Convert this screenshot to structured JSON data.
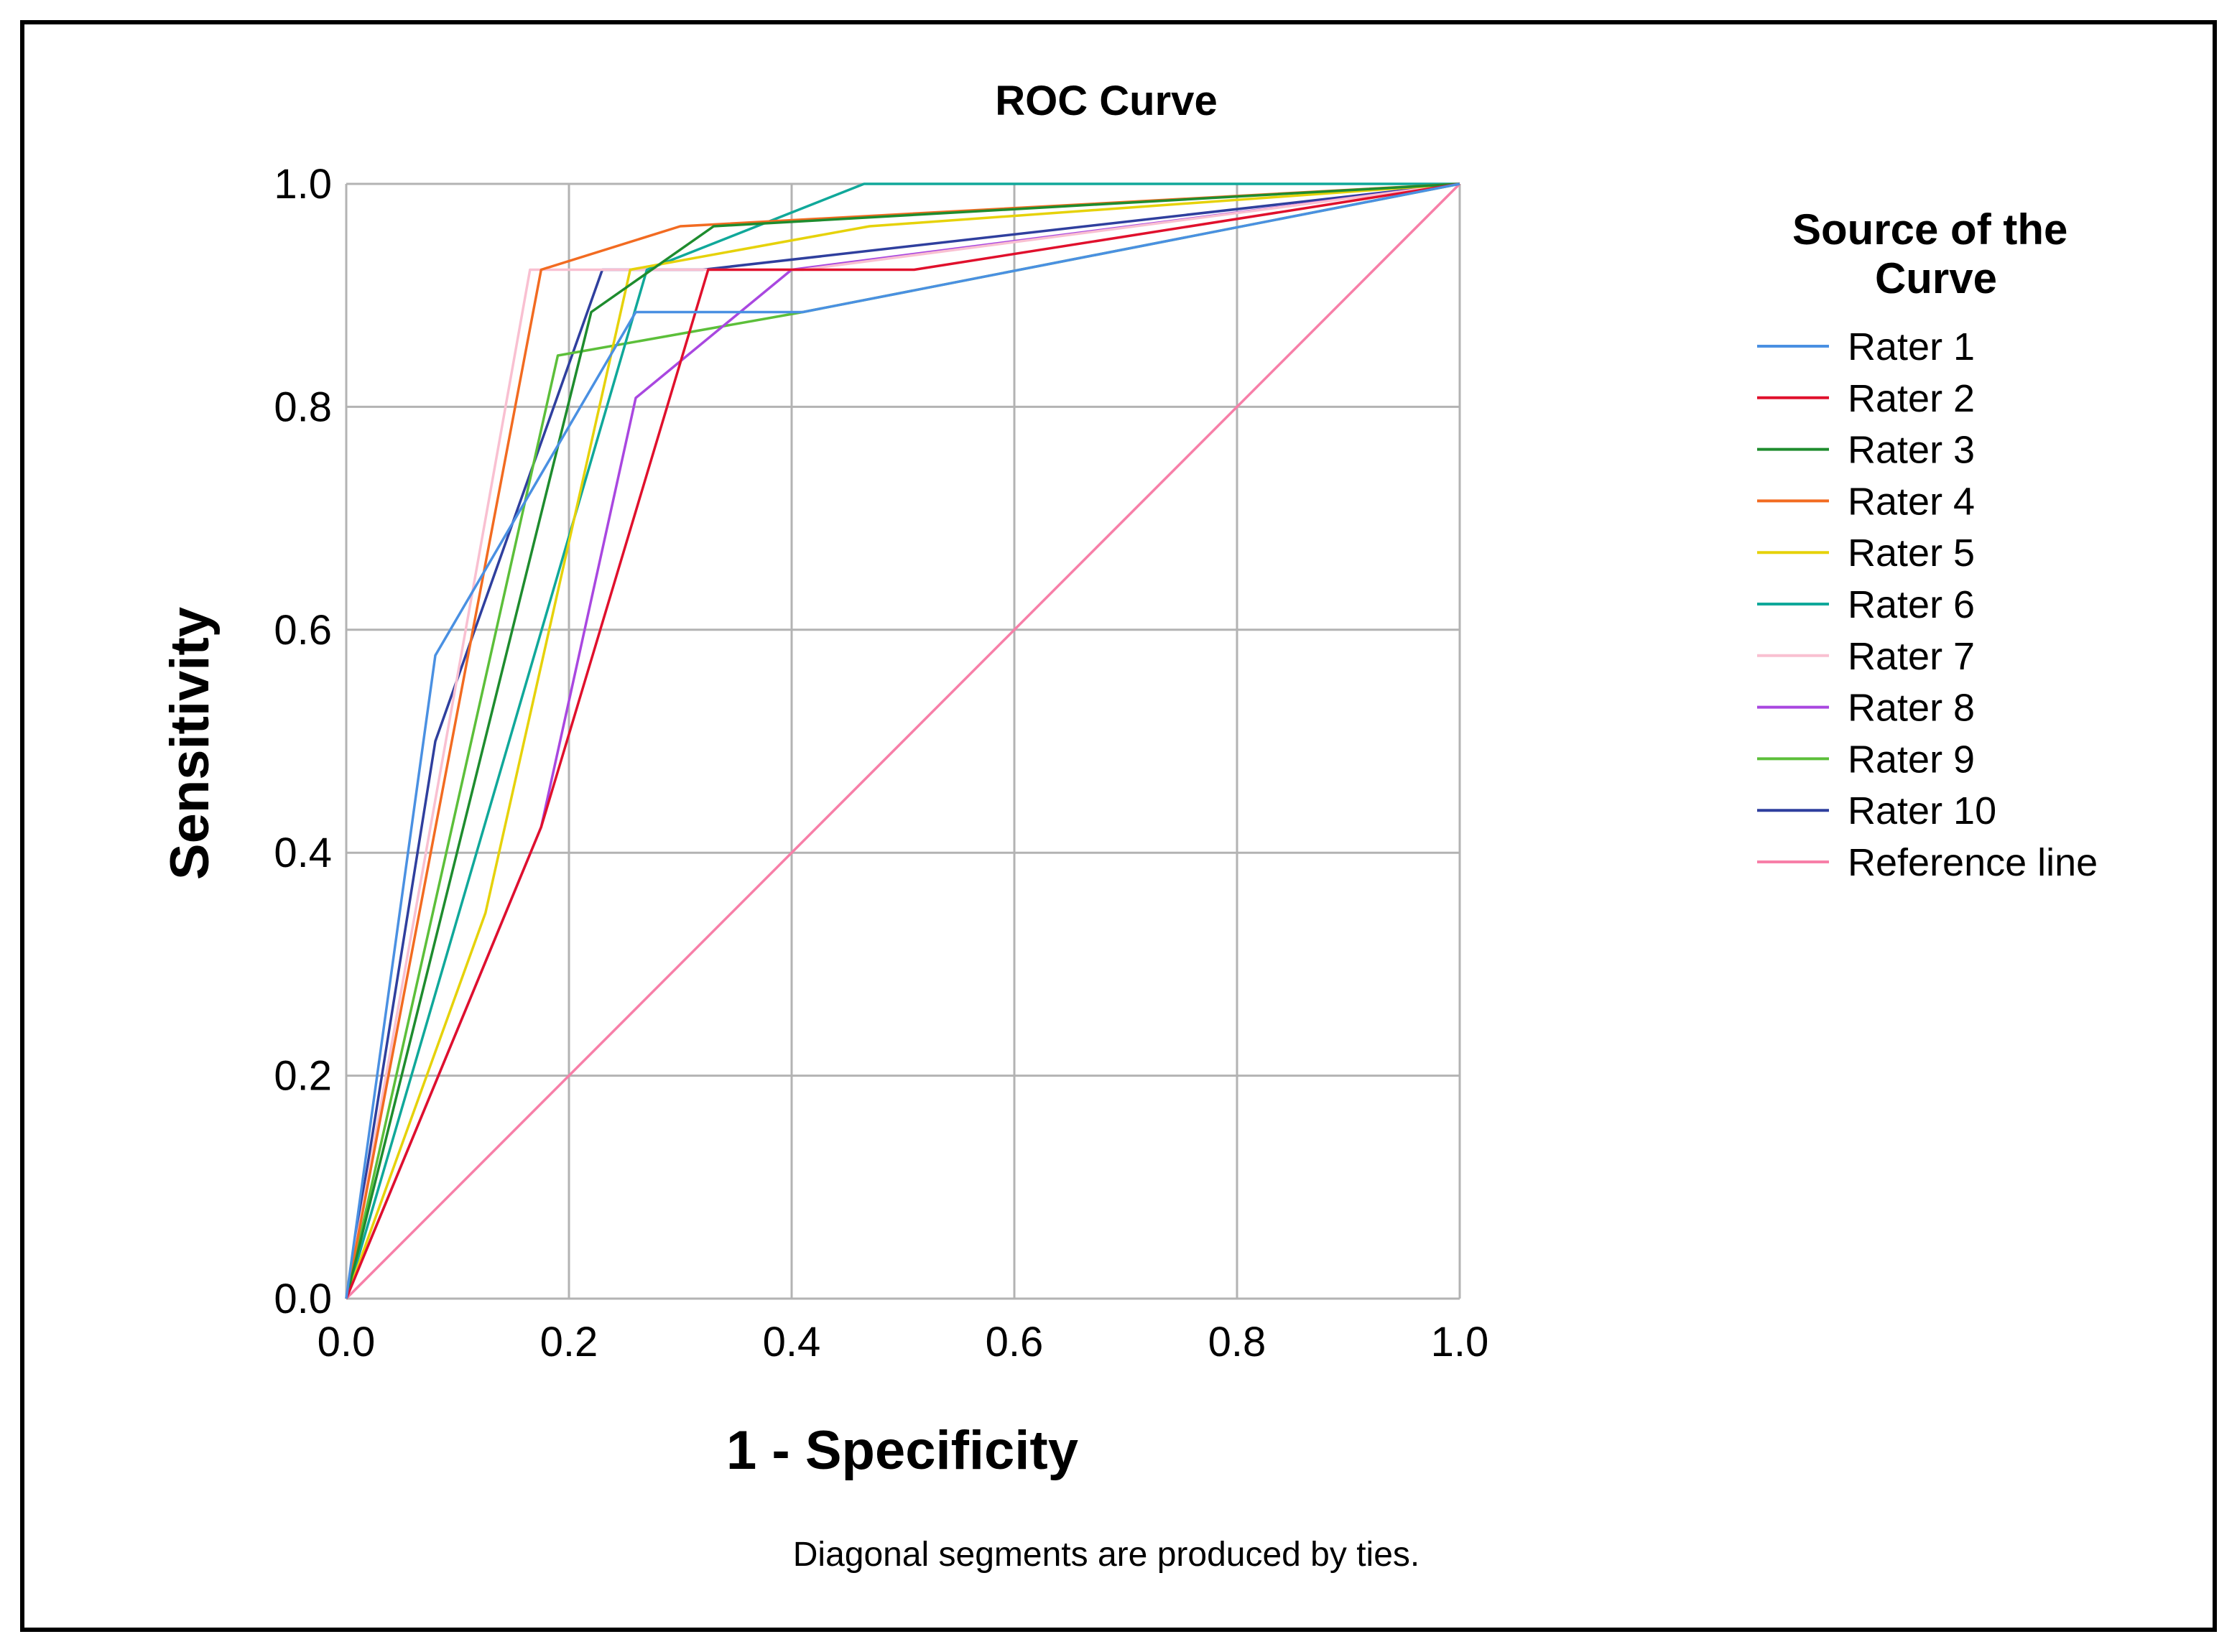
{
  "chart_data": {
    "type": "line",
    "title": "ROC Curve",
    "xlabel": "1 - Specificity",
    "ylabel": "Sensitivity",
    "xlim": [
      0,
      1
    ],
    "ylim": [
      0,
      1
    ],
    "x_ticks": [
      "0.0",
      "0.2",
      "0.4",
      "0.6",
      "0.8",
      "1.0"
    ],
    "y_ticks": [
      "0.0",
      "0.2",
      "0.4",
      "0.6",
      "0.8",
      "1.0"
    ],
    "grid": true,
    "legend_title": "Source of the Curve",
    "legend_title_lines": [
      "Source of the",
      "Curve"
    ],
    "legend_position": "right",
    "footnote": "Diagonal segments are produced by ties.",
    "series": [
      {
        "name": "Rater 1",
        "color": "#4a90e2",
        "points": [
          [
            0,
            0
          ],
          [
            0.08,
            0.577
          ],
          [
            0.26,
            0.885
          ],
          [
            0.41,
            0.885
          ],
          [
            1,
            1
          ]
        ]
      },
      {
        "name": "Rater 2",
        "color": "#e0102c",
        "points": [
          [
            0,
            0
          ],
          [
            0.175,
            0.423
          ],
          [
            0.325,
            0.923
          ],
          [
            0.51,
            0.923
          ],
          [
            1,
            1
          ]
        ]
      },
      {
        "name": "Rater 3",
        "color": "#1e8c2e",
        "points": [
          [
            0,
            0
          ],
          [
            0.22,
            0.885
          ],
          [
            0.33,
            0.962
          ],
          [
            1,
            1
          ]
        ]
      },
      {
        "name": "Rater 4",
        "color": "#f26b21",
        "points": [
          [
            0,
            0
          ],
          [
            0.175,
            0.923
          ],
          [
            0.3,
            0.962
          ],
          [
            1,
            1
          ]
        ]
      },
      {
        "name": "Rater 5",
        "color": "#e6d20a",
        "points": [
          [
            0,
            0
          ],
          [
            0.125,
            0.346
          ],
          [
            0.255,
            0.923
          ],
          [
            0.47,
            0.962
          ],
          [
            1,
            1
          ]
        ]
      },
      {
        "name": "Rater 6",
        "color": "#10a89a",
        "points": [
          [
            0,
            0
          ],
          [
            0.27,
            0.923
          ],
          [
            0.465,
            1
          ],
          [
            1,
            1
          ]
        ]
      },
      {
        "name": "Rater 7",
        "color": "#f9c0d1",
        "points": [
          [
            0,
            0
          ],
          [
            0.165,
            0.923
          ],
          [
            0.41,
            0.923
          ],
          [
            1,
            1
          ]
        ]
      },
      {
        "name": "Rater 8",
        "color": "#a947e0",
        "points": [
          [
            0,
            0
          ],
          [
            0.175,
            0.423
          ],
          [
            0.26,
            0.808
          ],
          [
            0.4,
            0.923
          ],
          [
            1,
            1
          ]
        ]
      },
      {
        "name": "Rater 9",
        "color": "#5cbf3a",
        "points": [
          [
            0,
            0
          ],
          [
            0.19,
            0.846
          ],
          [
            0.41,
            0.885
          ],
          [
            1,
            1
          ]
        ]
      },
      {
        "name": "Rater 10",
        "color": "#2f3f9e",
        "points": [
          [
            0,
            0
          ],
          [
            0.08,
            0.5
          ],
          [
            0.23,
            0.923
          ],
          [
            0.32,
            0.923
          ],
          [
            1,
            1
          ]
        ]
      },
      {
        "name": "Reference line",
        "color": "#f77fa8",
        "points": [
          [
            0,
            0
          ],
          [
            1,
            1
          ]
        ]
      }
    ]
  }
}
